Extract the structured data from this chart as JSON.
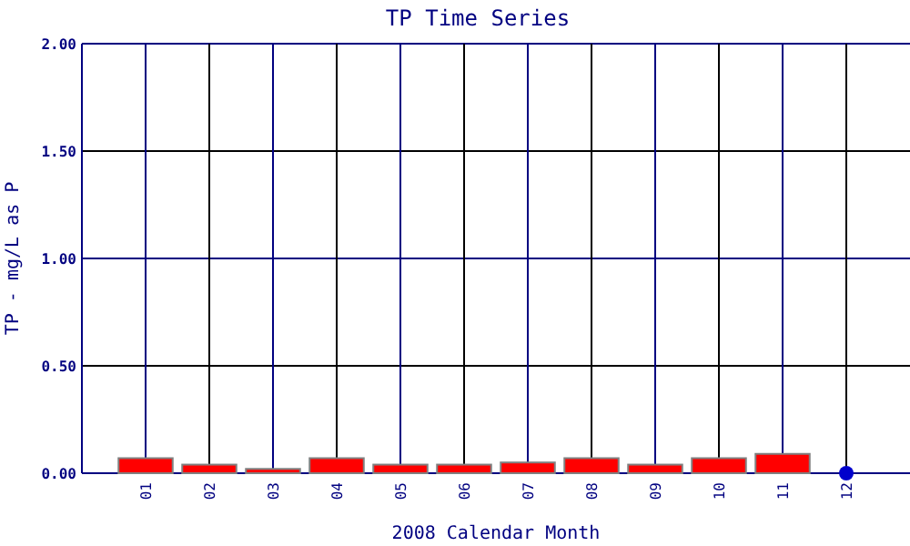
{
  "chart_data": {
    "type": "bar",
    "title": "TP Time Series",
    "xlabel": "2008 Calendar Month",
    "ylabel": "TP - mg/L as P",
    "categories": [
      "01",
      "02",
      "03",
      "04",
      "05",
      "06",
      "07",
      "08",
      "09",
      "10",
      "11",
      "12"
    ],
    "series": [
      {
        "color": "#ff0000",
        "values": [
          0.07,
          0.04,
          0.02,
          0.07,
          0.04,
          0.04,
          0.05,
          0.07,
          0.04,
          0.07,
          0.09,
          null
        ]
      },
      {
        "type": "scatter",
        "color": "#0000cc",
        "x": [
          "12"
        ],
        "values": [
          0
        ]
      }
    ],
    "ylim": [
      0,
      2
    ],
    "yticks": [
      {
        "value": 0,
        "label": "0.00"
      },
      {
        "value": 0.5,
        "label": "0.50"
      },
      {
        "value": 1,
        "label": "1.00"
      },
      {
        "value": 1.5,
        "label": "1.50"
      },
      {
        "value": 2,
        "label": "2.00"
      }
    ],
    "grid": true,
    "marker": "circle"
  }
}
